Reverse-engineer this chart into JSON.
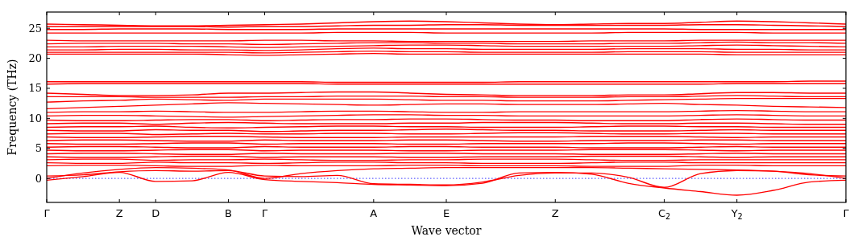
{
  "chart_data": {
    "type": "line",
    "xlabel": "Wave vector",
    "ylabel": "Frequency (THz)",
    "ylim": [
      -4,
      27.7
    ],
    "categories": [
      "Γ",
      null,
      "Z",
      "D",
      null,
      "B",
      "Γ",
      null,
      null,
      "A",
      null,
      "E",
      null,
      null,
      "Z",
      null,
      null,
      "C$_{2}$",
      null,
      "Y$_{2}$",
      null,
      null,
      "Γ"
    ],
    "yticks": [
      0,
      5,
      10,
      15,
      20,
      25
    ],
    "grid": false,
    "marker": "none",
    "line_style": "solid",
    "ref_lines": [
      {
        "axis": "y",
        "value": 0,
        "color": "#0000ff",
        "line_style": "dotted"
      }
    ],
    "series": [
      {
        "color": "#ff0000",
        "values": [
          25.7,
          25.6,
          25.5,
          25.4,
          25.4,
          25.5,
          25.6,
          25.7,
          25.9,
          26.1,
          26.2,
          26.1,
          25.9,
          25.7,
          25.6,
          25.7,
          25.8,
          25.8,
          26.0,
          26.2,
          26.1,
          25.9,
          25.7
        ]
      },
      {
        "color": "#ff0000",
        "values": [
          25.3,
          25.3,
          25.3,
          25.3,
          25.3,
          25.2,
          25.3,
          25.3,
          25.4,
          25.5,
          25.5,
          25.6,
          25.6,
          25.5,
          25.5,
          25.5,
          25.5,
          25.5,
          25.6,
          25.6,
          25.5,
          25.4,
          25.3
        ]
      },
      {
        "color": "#ff0000",
        "values": [
          24.8,
          24.8,
          24.9,
          24.9,
          24.9,
          24.8,
          24.8,
          24.8,
          24.9,
          24.9,
          24.9,
          24.9,
          24.9,
          24.9,
          24.9,
          24.9,
          24.9,
          24.9,
          24.8,
          24.8,
          24.8,
          24.8,
          24.8
        ]
      },
      {
        "color": "#ff0000",
        "values": [
          24.2,
          24.2,
          24.2,
          24.2,
          24.2,
          24.2,
          24.2,
          24.2,
          24.3,
          24.3,
          24.3,
          24.2,
          24.2,
          24.2,
          24.2,
          24.2,
          24.3,
          24.3,
          24.3,
          24.3,
          24.2,
          24.2,
          24.2
        ]
      },
      {
        "color": "#ff0000",
        "values": [
          23.0,
          22.9,
          22.9,
          22.9,
          22.9,
          22.9,
          23.0,
          23.0,
          22.9,
          22.9,
          22.8,
          22.8,
          22.8,
          22.8,
          22.8,
          22.9,
          22.9,
          22.9,
          23.0,
          23.0,
          23.0,
          23.0,
          23.0
        ]
      },
      {
        "color": "#ff0000",
        "values": [
          22.4,
          22.5,
          22.5,
          22.5,
          22.4,
          22.4,
          22.3,
          22.4,
          22.5,
          22.6,
          22.6,
          22.5,
          22.5,
          22.4,
          22.4,
          22.4,
          22.5,
          22.5,
          22.6,
          22.7,
          22.6,
          22.6,
          22.5
        ]
      },
      {
        "color": "#ff0000",
        "values": [
          21.9,
          21.9,
          22.0,
          22.0,
          22.0,
          21.9,
          21.8,
          21.9,
          22.0,
          22.1,
          22.2,
          22.2,
          22.1,
          22.0,
          22.0,
          22.0,
          22.0,
          22.0,
          22.1,
          22.2,
          22.1,
          22.0,
          21.9
        ]
      },
      {
        "color": "#ff0000",
        "values": [
          21.4,
          21.4,
          21.5,
          21.5,
          21.4,
          21.4,
          21.3,
          21.4,
          21.6,
          21.7,
          21.6,
          21.6,
          21.5,
          21.5,
          21.5,
          21.5,
          21.6,
          21.6,
          21.6,
          21.5,
          21.5,
          21.4,
          21.4
        ]
      },
      {
        "color": "#ff0000",
        "values": [
          21.0,
          21.0,
          21.0,
          21.0,
          21.0,
          21.0,
          20.9,
          21.0,
          21.1,
          21.2,
          21.1,
          21.1,
          21.0,
          21.0,
          21.0,
          21.0,
          21.1,
          21.1,
          21.1,
          21.0,
          21.0,
          21.0,
          21.0
        ]
      },
      {
        "color": "#ff0000",
        "values": [
          20.7,
          20.7,
          20.7,
          20.7,
          20.7,
          20.6,
          20.5,
          20.6,
          20.7,
          20.8,
          20.7,
          20.7,
          20.7,
          20.7,
          20.7,
          20.7,
          20.7,
          20.7,
          20.7,
          20.6,
          20.6,
          20.6,
          20.6
        ]
      },
      {
        "color": "#ff0000",
        "values": [
          16.1,
          16.1,
          16.1,
          16.1,
          16.1,
          16.1,
          16.1,
          16.1,
          16.0,
          16.0,
          16.0,
          16.0,
          16.0,
          16.1,
          16.1,
          16.1,
          16.1,
          16.1,
          16.1,
          16.1,
          16.1,
          16.2,
          16.2
        ]
      },
      {
        "color": "#ff0000",
        "values": [
          15.7,
          15.8,
          15.8,
          15.8,
          15.8,
          15.8,
          15.8,
          15.8,
          15.7,
          15.7,
          15.7,
          15.7,
          15.7,
          15.7,
          15.7,
          15.7,
          15.7,
          15.7,
          15.7,
          15.8,
          15.8,
          15.8,
          15.8
        ]
      },
      {
        "color": "#ff0000",
        "values": [
          14.2,
          14.0,
          13.8,
          13.8,
          13.9,
          14.2,
          14.2,
          14.3,
          14.4,
          14.4,
          14.2,
          14.0,
          13.9,
          13.8,
          13.8,
          13.8,
          13.9,
          13.9,
          14.1,
          14.3,
          14.3,
          14.2,
          14.2
        ]
      },
      {
        "color": "#ff0000",
        "values": [
          13.6,
          13.6,
          13.6,
          13.5,
          13.5,
          13.5,
          13.6,
          13.6,
          13.7,
          13.7,
          13.7,
          13.6,
          13.6,
          13.5,
          13.5,
          13.5,
          13.6,
          13.6,
          13.7,
          13.8,
          13.7,
          13.6,
          13.6
        ]
      },
      {
        "color": "#ff0000",
        "values": [
          12.7,
          12.9,
          13.0,
          13.2,
          13.1,
          13.0,
          13.2,
          13.2,
          13.2,
          13.2,
          13.1,
          13.0,
          13.0,
          12.9,
          12.9,
          12.9,
          13.0,
          13.1,
          13.2,
          13.3,
          13.3,
          13.3,
          13.3
        ]
      },
      {
        "color": "#ff0000",
        "values": [
          11.6,
          11.8,
          12.0,
          12.2,
          12.4,
          12.6,
          12.5,
          12.4,
          12.3,
          12.2,
          12.3,
          12.4,
          12.4,
          12.3,
          12.3,
          12.3,
          12.4,
          12.5,
          12.3,
          12.2,
          12.0,
          11.9,
          11.8
        ]
      },
      {
        "color": "#ff0000",
        "values": [
          11.0,
          11.1,
          11.1,
          11.2,
          11.1,
          11.0,
          11.0,
          11.1,
          11.2,
          11.2,
          11.1,
          11.0,
          11.0,
          11.1,
          11.1,
          11.1,
          11.1,
          11.1,
          11.2,
          11.3,
          11.2,
          11.1,
          11.1
        ]
      },
      {
        "color": "#ff0000",
        "values": [
          10.4,
          10.5,
          10.5,
          10.4,
          10.3,
          10.2,
          10.3,
          10.4,
          10.5,
          10.6,
          10.6,
          10.5,
          10.5,
          10.4,
          10.4,
          10.4,
          10.4,
          10.4,
          10.5,
          10.6,
          10.5,
          10.4,
          10.4
        ]
      },
      {
        "color": "#ff0000",
        "values": [
          9.7,
          9.6,
          9.6,
          9.7,
          9.8,
          9.8,
          9.6,
          9.7,
          9.8,
          9.8,
          9.9,
          9.9,
          9.8,
          9.7,
          9.7,
          9.6,
          9.6,
          9.6,
          9.8,
          9.9,
          9.8,
          9.7,
          9.7
        ]
      },
      {
        "color": "#ff0000",
        "values": [
          9.1,
          9.2,
          9.2,
          9.0,
          9.2,
          9.3,
          9.2,
          9.1,
          9.1,
          9.1,
          9.2,
          9.2,
          9.3,
          9.3,
          9.3,
          9.2,
          9.1,
          9.1,
          9.2,
          9.2,
          9.1,
          9.0,
          9.0
        ]
      },
      {
        "color": "#ff0000",
        "values": [
          8.5,
          8.6,
          8.6,
          8.7,
          8.5,
          8.4,
          8.5,
          8.6,
          8.7,
          8.7,
          8.6,
          8.6,
          8.5,
          8.5,
          8.5,
          8.6,
          8.7,
          8.7,
          8.6,
          8.6,
          8.5,
          8.5,
          8.5
        ]
      },
      {
        "color": "#ff0000",
        "values": [
          8.0,
          7.9,
          7.9,
          8.1,
          8.0,
          8.0,
          7.8,
          7.9,
          8.0,
          8.0,
          8.1,
          8.2,
          8.1,
          8.0,
          8.0,
          7.9,
          7.9,
          7.9,
          8.0,
          8.1,
          8.0,
          8.0,
          8.0
        ]
      },
      {
        "color": "#ff0000",
        "values": [
          7.4,
          7.5,
          7.5,
          7.3,
          7.4,
          7.5,
          7.4,
          7.4,
          7.5,
          7.5,
          7.4,
          7.4,
          7.5,
          7.6,
          7.6,
          7.5,
          7.4,
          7.4,
          7.5,
          7.5,
          7.4,
          7.4,
          7.4
        ]
      },
      {
        "color": "#ff0000",
        "values": [
          6.9,
          6.8,
          6.8,
          6.9,
          7.0,
          7.0,
          6.9,
          6.8,
          6.8,
          6.8,
          6.9,
          6.9,
          6.9,
          6.9,
          6.9,
          7.0,
          7.0,
          7.0,
          6.9,
          6.8,
          6.9,
          6.9,
          6.9
        ]
      },
      {
        "color": "#ff0000",
        "values": [
          6.3,
          6.4,
          6.4,
          6.3,
          6.2,
          6.2,
          6.4,
          6.3,
          6.3,
          6.3,
          6.4,
          6.4,
          6.3,
          6.2,
          6.2,
          6.3,
          6.3,
          6.3,
          6.4,
          6.4,
          6.3,
          6.3,
          6.3
        ]
      },
      {
        "color": "#ff0000",
        "values": [
          5.8,
          5.7,
          5.7,
          5.8,
          5.9,
          5.9,
          5.7,
          5.8,
          5.8,
          5.8,
          5.7,
          5.7,
          5.8,
          5.8,
          5.8,
          5.8,
          5.9,
          5.9,
          5.8,
          5.7,
          5.8,
          5.8,
          5.8
        ]
      },
      {
        "color": "#ff0000",
        "values": [
          5.2,
          5.3,
          5.3,
          5.2,
          5.1,
          5.1,
          5.3,
          5.2,
          5.2,
          5.2,
          5.3,
          5.3,
          5.2,
          5.2,
          5.2,
          5.1,
          5.1,
          5.1,
          5.2,
          5.3,
          5.2,
          5.2,
          5.2
        ]
      },
      {
        "color": "#ff0000",
        "values": [
          4.7,
          4.6,
          4.6,
          4.7,
          4.8,
          4.8,
          4.6,
          4.7,
          4.7,
          4.7,
          4.6,
          4.6,
          4.7,
          4.7,
          4.7,
          4.8,
          4.8,
          4.8,
          4.7,
          4.6,
          4.7,
          4.7,
          4.7
        ]
      },
      {
        "color": "#ff0000",
        "values": [
          4.1,
          4.2,
          4.2,
          4.1,
          4.0,
          4.0,
          4.2,
          4.1,
          4.1,
          4.1,
          4.2,
          4.2,
          4.1,
          4.1,
          4.1,
          4.0,
          4.0,
          4.0,
          4.1,
          4.2,
          4.1,
          4.1,
          4.1
        ]
      },
      {
        "color": "#ff0000",
        "values": [
          3.6,
          3.5,
          3.5,
          3.6,
          3.7,
          3.7,
          3.5,
          3.6,
          3.6,
          3.6,
          3.5,
          3.5,
          3.6,
          3.6,
          3.6,
          3.7,
          3.7,
          3.7,
          3.6,
          3.5,
          3.6,
          3.6,
          3.6
        ]
      },
      {
        "color": "#ff0000",
        "values": [
          3.1,
          3.2,
          3.2,
          3.0,
          3.1,
          3.1,
          3.2,
          3.1,
          3.0,
          3.0,
          3.1,
          3.1,
          3.2,
          3.2,
          3.2,
          3.1,
          3.0,
          3.0,
          3.1,
          3.1,
          3.1,
          3.1,
          3.1
        ]
      },
      {
        "color": "#ff0000",
        "values": [
          2.6,
          2.5,
          2.5,
          2.7,
          2.6,
          2.6,
          2.5,
          2.6,
          2.7,
          2.7,
          2.6,
          2.6,
          2.5,
          2.5,
          2.5,
          2.6,
          2.7,
          2.7,
          2.6,
          2.6,
          2.6,
          2.6,
          2.6
        ]
      },
      {
        "color": "#ff0000",
        "values": [
          2.1,
          2.2,
          2.2,
          2.1,
          2.0,
          2.0,
          2.2,
          2.1,
          2.1,
          2.1,
          2.2,
          2.2,
          2.1,
          2.1,
          2.1,
          2.0,
          2.0,
          2.0,
          2.2,
          2.2,
          2.1,
          2.1,
          2.1
        ]
      },
      {
        "color": "#ff0000",
        "values": [
          0,
          0.9,
          1.5,
          1.8,
          1.7,
          1.4,
          0,
          0.8,
          1.3,
          1.6,
          1.7,
          1.8,
          1.8,
          1.8,
          1.8,
          1.8,
          1.7,
          1.6,
          1.5,
          1.4,
          1.2,
          0.8,
          0
        ]
      },
      {
        "color": "#ff0000",
        "values": [
          0.4,
          0.6,
          1.1,
          1.3,
          1.2,
          1.3,
          0.4,
          0.3,
          0.5,
          -0.9,
          -1.0,
          -1.1,
          -0.6,
          0.5,
          0.9,
          0.9,
          0.2,
          -1.5,
          0.8,
          1.3,
          1.2,
          0.6,
          0.4
        ]
      },
      {
        "color": "#ff0000",
        "values": [
          -0.3,
          0.3,
          1.0,
          -0.5,
          -0.4,
          1.0,
          -0.2,
          -0.5,
          -0.7,
          -1.0,
          -1.1,
          -1.2,
          -0.8,
          0.9,
          1.0,
          0.7,
          -0.8,
          -1.6,
          -2.2,
          -2.8,
          -2.0,
          -0.6,
          -0.3
        ]
      }
    ]
  }
}
